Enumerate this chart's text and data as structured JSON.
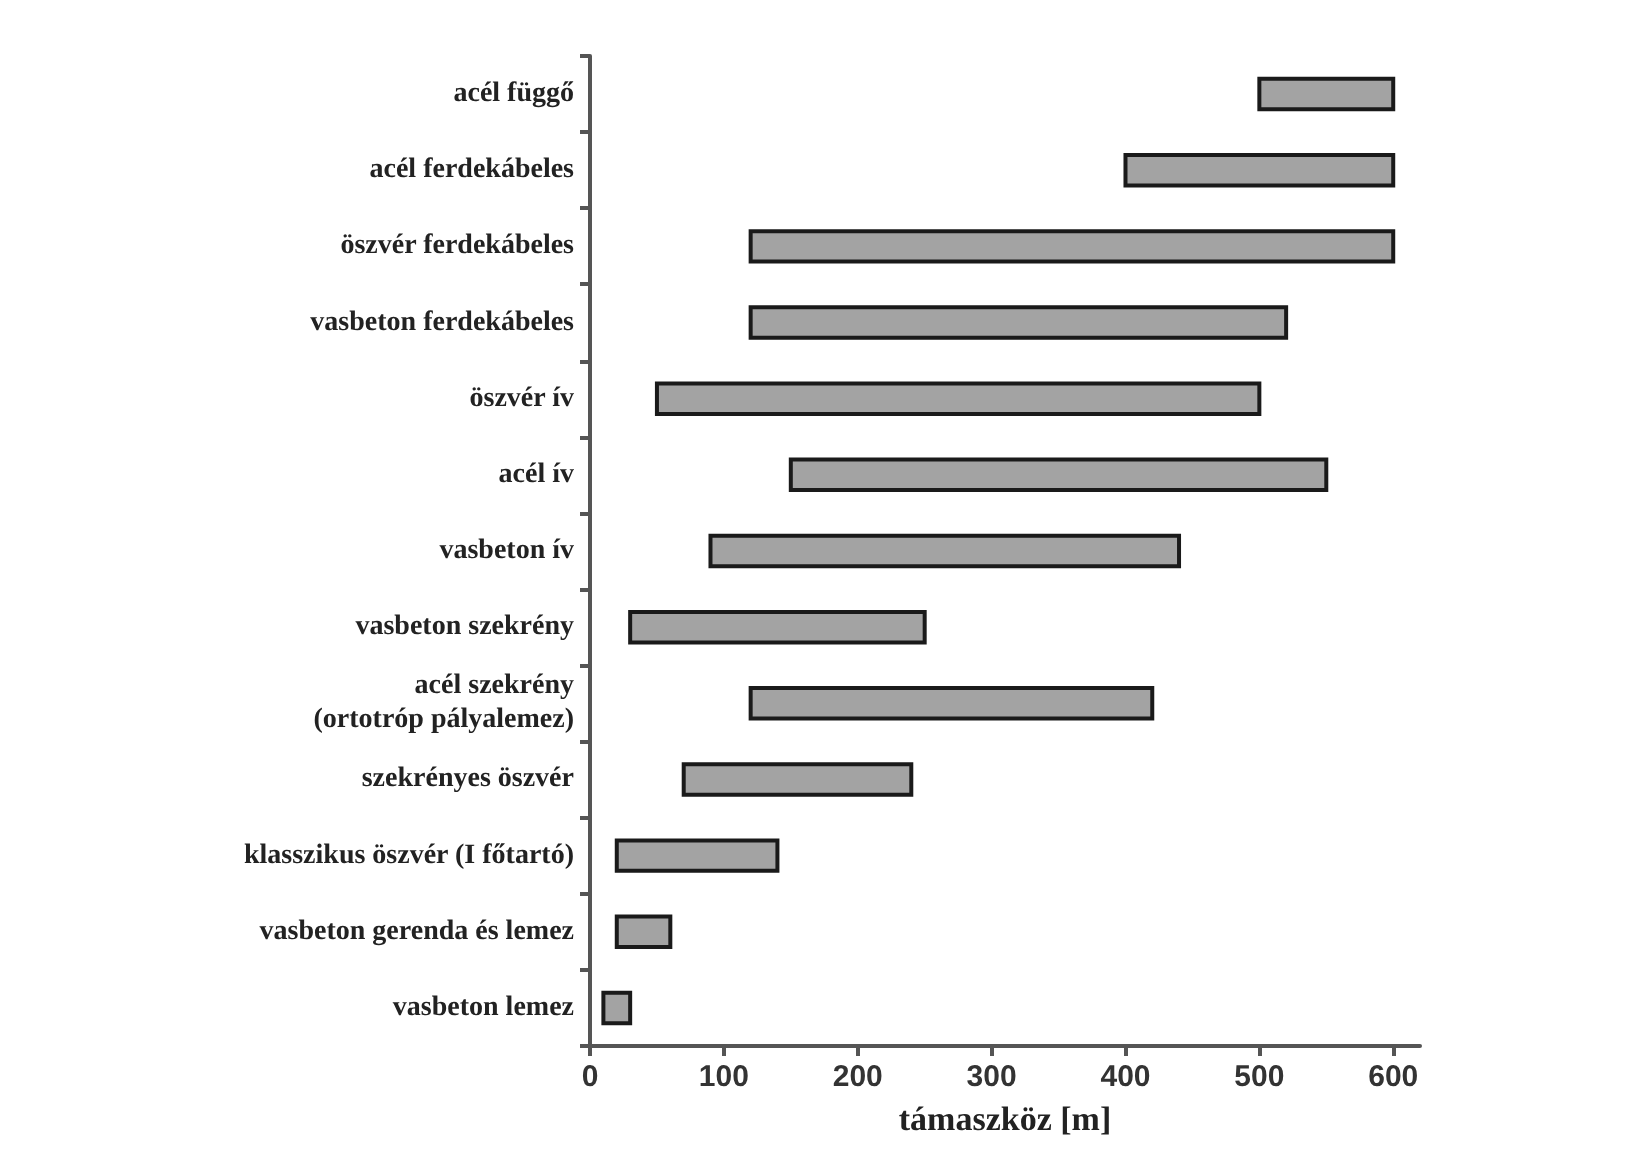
{
  "chart_data": {
    "type": "bar",
    "orientation": "horizontal",
    "xlabel": "támaszköz [m]",
    "categories": [
      "acél függő",
      "acél ferdekábeles",
      "öszvér ferdekábeles",
      "vasbeton ferdekábeles",
      "öszvér ív",
      "acél ív",
      "vasbeton ív",
      "vasbeton szekrény",
      "acél szekrény\n(ortotróp pályalemez)",
      "szekrényes öszvér",
      "klasszikus öszvér (I főtartó)",
      "vasbeton gerenda és lemez",
      "vasbeton lemez"
    ],
    "base": [
      500,
      400,
      120,
      120,
      50,
      150,
      90,
      30,
      120,
      70,
      20,
      20,
      10
    ],
    "values": [
      100,
      200,
      480,
      400,
      450,
      400,
      350,
      220,
      300,
      170,
      120,
      40,
      20
    ],
    "color": "#a3a3a3",
    "xlim": [
      0,
      620
    ],
    "xticks": [
      0,
      100,
      200,
      300,
      400,
      500,
      600
    ],
    "grid": false
  }
}
